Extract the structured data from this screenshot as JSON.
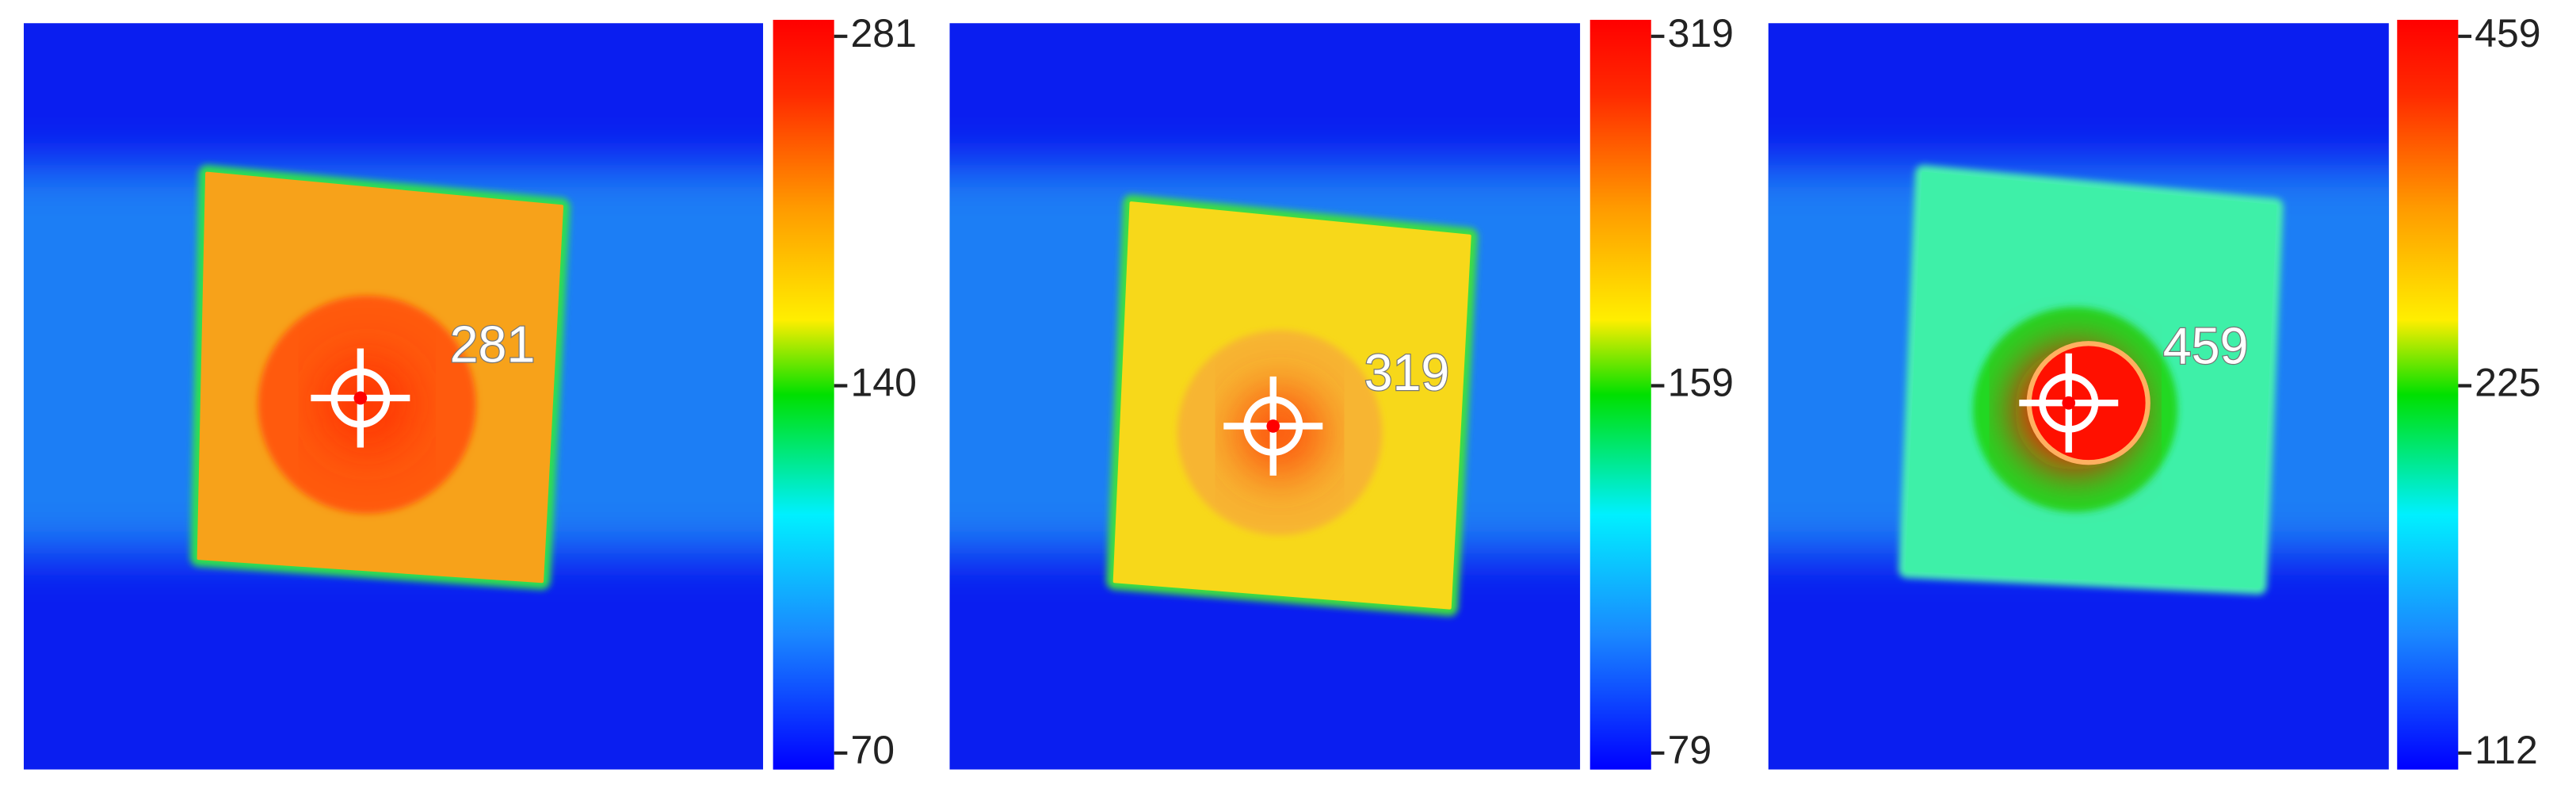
{
  "panels": [
    {
      "spot_label": 281,
      "colorbar_ticks": [
        281,
        140,
        70
      ]
    },
    {
      "spot_label": 319,
      "colorbar_ticks": [
        319,
        159,
        79
      ]
    },
    {
      "spot_label": 459,
      "colorbar_ticks": [
        459,
        225,
        112
      ]
    }
  ]
}
